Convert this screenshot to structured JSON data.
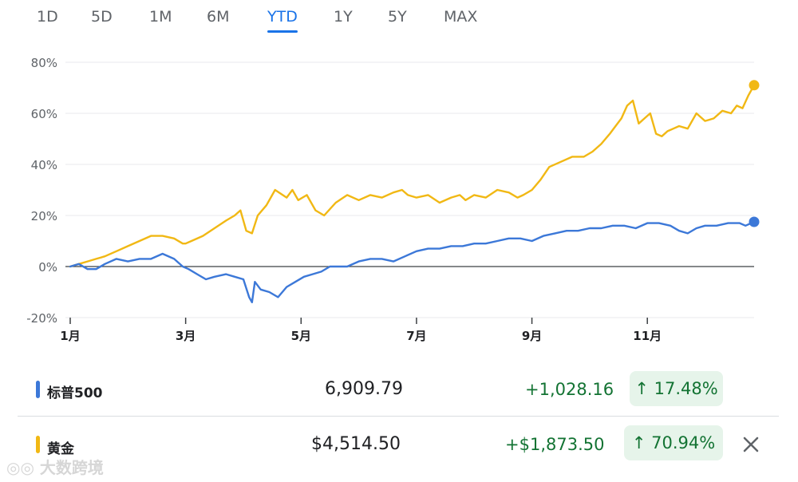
{
  "tabs": [
    {
      "label": "1D",
      "active": false
    },
    {
      "label": "5D",
      "active": false
    },
    {
      "label": "1M",
      "active": false
    },
    {
      "label": "6M",
      "active": false
    },
    {
      "label": "YTD",
      "active": true
    },
    {
      "label": "1Y",
      "active": false
    },
    {
      "label": "5Y",
      "active": false
    },
    {
      "label": "MAX",
      "active": false
    }
  ],
  "colors": {
    "sp500": "#3c78d8",
    "gold": "#f1b814",
    "gain": "#137333",
    "gain_bg": "#e6f4ea",
    "accent": "#1a73e8"
  },
  "chart_data": {
    "type": "line",
    "ylim": [
      -20,
      80
    ],
    "yticks": [
      80,
      60,
      40,
      20,
      0,
      -20
    ],
    "ytick_labels": [
      "80%",
      "60%",
      "40%",
      "20%",
      "0%",
      "-20%"
    ],
    "xlim": [
      1,
      12.85
    ],
    "xticks": [
      1,
      3,
      5,
      7,
      9,
      11
    ],
    "xtick_labels": [
      "1月",
      "3月",
      "5月",
      "7月",
      "9月",
      "11月"
    ],
    "grid": "horizontal",
    "series": [
      {
        "name": "黄金",
        "color": "#f1b814",
        "x": [
          1.0,
          1.15,
          1.3,
          1.45,
          1.6,
          1.8,
          2.0,
          2.2,
          2.4,
          2.6,
          2.8,
          2.95,
          3.0,
          3.1,
          3.3,
          3.5,
          3.7,
          3.85,
          3.95,
          4.05,
          4.15,
          4.25,
          4.4,
          4.55,
          4.75,
          4.85,
          4.95,
          5.1,
          5.25,
          5.4,
          5.6,
          5.8,
          6.0,
          6.2,
          6.4,
          6.6,
          6.75,
          6.85,
          7.0,
          7.2,
          7.4,
          7.6,
          7.75,
          7.85,
          8.0,
          8.2,
          8.4,
          8.6,
          8.75,
          8.85,
          9.0,
          9.15,
          9.3,
          9.5,
          9.7,
          9.9,
          10.05,
          10.2,
          10.35,
          10.45,
          10.55,
          10.65,
          10.75,
          10.85,
          10.95,
          11.05,
          11.15,
          11.25,
          11.35,
          11.45,
          11.55,
          11.7,
          11.85,
          12.0,
          12.15,
          12.3,
          12.45,
          12.55,
          12.65,
          12.75,
          12.85
        ],
        "y": [
          0,
          1,
          2,
          3,
          4,
          6,
          8,
          10,
          12,
          12,
          11,
          9,
          9,
          10,
          12,
          15,
          18,
          20,
          22,
          14,
          13,
          20,
          24,
          30,
          27,
          30,
          26,
          28,
          22,
          20,
          25,
          28,
          26,
          28,
          27,
          29,
          30,
          28,
          27,
          28,
          25,
          27,
          28,
          26,
          28,
          27,
          30,
          29,
          27,
          28,
          30,
          34,
          39,
          41,
          43,
          43,
          45,
          48,
          52,
          55,
          58,
          63,
          65,
          56,
          58,
          60,
          52,
          51,
          53,
          54,
          55,
          54,
          60,
          57,
          58,
          61,
          60,
          63,
          62,
          67,
          71
        ]
      },
      {
        "name": "标普500",
        "color": "#3c78d8",
        "x": [
          1.0,
          1.15,
          1.3,
          1.45,
          1.6,
          1.8,
          2.0,
          2.2,
          2.4,
          2.6,
          2.8,
          2.95,
          3.05,
          3.2,
          3.35,
          3.5,
          3.7,
          3.85,
          4.0,
          4.1,
          4.15,
          4.2,
          4.3,
          4.45,
          4.6,
          4.75,
          4.9,
          5.05,
          5.2,
          5.35,
          5.5,
          5.65,
          5.8,
          6.0,
          6.2,
          6.4,
          6.6,
          6.8,
          7.0,
          7.2,
          7.4,
          7.6,
          7.8,
          8.0,
          8.2,
          8.4,
          8.6,
          8.8,
          9.0,
          9.2,
          9.4,
          9.6,
          9.8,
          10.0,
          10.2,
          10.4,
          10.6,
          10.8,
          11.0,
          11.2,
          11.4,
          11.55,
          11.7,
          11.85,
          12.0,
          12.2,
          12.4,
          12.6,
          12.7,
          12.85
        ],
        "y": [
          0,
          1,
          -1,
          -1,
          1,
          3,
          2,
          3,
          3,
          5,
          3,
          0,
          -1,
          -3,
          -5,
          -4,
          -3,
          -4,
          -5,
          -12,
          -14,
          -6,
          -9,
          -10,
          -12,
          -8,
          -6,
          -4,
          -3,
          -2,
          0,
          0,
          0,
          2,
          3,
          3,
          2,
          4,
          6,
          7,
          7,
          8,
          8,
          9,
          9,
          10,
          11,
          11,
          10,
          12,
          13,
          14,
          14,
          15,
          15,
          16,
          16,
          15,
          17,
          17,
          16,
          14,
          13,
          15,
          16,
          16,
          17,
          17,
          16,
          17.5
        ]
      }
    ]
  },
  "rows": [
    {
      "label": "标普500",
      "color": "#3c78d8",
      "price": "6,909.79",
      "change": "+1,028.16",
      "percent": "↑ 17.48%"
    },
    {
      "label": "黄金",
      "color": "#f1b814",
      "price": "$4,514.50",
      "change": "+$1,873.50",
      "percent": "↑ 70.94%"
    }
  ],
  "watermark": "大数跨境"
}
